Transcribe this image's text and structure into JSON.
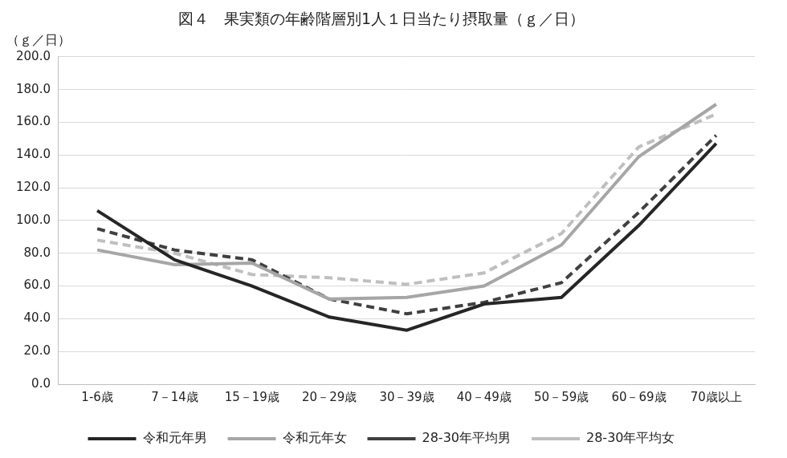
{
  "chart_data": {
    "type": "line",
    "title": "図４　果実類の年齢階層別1人１日当たり摂取量（ｇ／日）",
    "y_label": "（ｇ／日）",
    "categories": [
      "1-6歳",
      "7－14歳",
      "15－19歳",
      "20－29歳",
      "30－39歳",
      "40－49歳",
      "50－59歳",
      "60－69歳",
      "70歳以上"
    ],
    "series": [
      {
        "name": "令和元年男",
        "color": "#262626",
        "line_style": "solid",
        "marker": "none",
        "values": [
          106,
          76,
          60,
          41,
          33,
          49,
          53,
          97,
          147
        ]
      },
      {
        "name": "令和元年女",
        "color": "#a6a6a6",
        "line_style": "solid",
        "marker": "none",
        "values": [
          82,
          73,
          74,
          52,
          53,
          60,
          85,
          139,
          171
        ]
      },
      {
        "name": "28-30年平均男",
        "color": "#404040",
        "line_style": "dashed",
        "marker": "none",
        "values": [
          95,
          82,
          76,
          52,
          43,
          50,
          62,
          105,
          152
        ]
      },
      {
        "name": "28-30年平均女",
        "color": "#bfbfbf",
        "line_style": "dashed",
        "marker": "none",
        "values": [
          88,
          80,
          67,
          65,
          61,
          68,
          92,
          145,
          165
        ]
      }
    ],
    "ylim": [
      0,
      200
    ],
    "yticks": [
      {
        "value": 0,
        "label": "0.0"
      },
      {
        "value": 20,
        "label": "20.0"
      },
      {
        "value": 40,
        "label": "40.0"
      },
      {
        "value": 60,
        "label": "60.0"
      },
      {
        "value": 80,
        "label": "80.0"
      },
      {
        "value": 100,
        "label": "100.0"
      },
      {
        "value": 120,
        "label": "120.0"
      },
      {
        "value": 140,
        "label": "140.0"
      },
      {
        "value": 160,
        "label": "160.0"
      },
      {
        "value": 180,
        "label": "180.0"
      },
      {
        "value": 200,
        "label": "200.0"
      }
    ],
    "grid": true,
    "legend": "bottom"
  }
}
